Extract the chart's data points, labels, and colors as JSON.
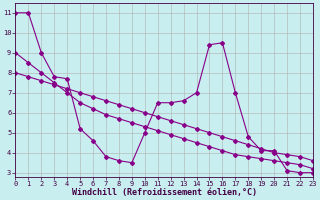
{
  "xlabel": "Windchill (Refroidissement éolien,°C)",
  "background_color": "#c8eef0",
  "grid_color": "#b0b0b0",
  "line_color": "#880088",
  "series": [
    {
      "x": [
        0,
        1,
        2,
        3,
        4,
        5,
        6,
        7,
        8,
        9,
        10,
        11,
        12,
        13,
        14,
        15,
        16,
        17,
        18,
        19,
        20,
        21,
        22,
        23
      ],
      "y": [
        11,
        11,
        9,
        7.8,
        7.7,
        5.2,
        4.6,
        3.8,
        3.6,
        3.5,
        5.0,
        6.5,
        6.5,
        6.6,
        7.0,
        9.4,
        9.5,
        7.0,
        4.8,
        4.1,
        4.1,
        3.1,
        3.0,
        3.0
      ]
    },
    {
      "x": [
        0,
        1,
        2,
        3,
        4,
        5,
        6,
        7,
        8,
        9,
        10,
        11,
        12,
        13,
        14,
        15,
        16,
        17,
        18,
        19,
        20,
        21,
        22,
        23
      ],
      "y": [
        9,
        8.5,
        8.0,
        7.5,
        7.0,
        6.5,
        6.2,
        5.9,
        5.7,
        5.5,
        5.3,
        5.1,
        4.9,
        4.7,
        4.5,
        4.3,
        4.1,
        3.9,
        3.8,
        3.7,
        3.6,
        3.5,
        3.4,
        3.2
      ]
    },
    {
      "x": [
        0,
        1,
        2,
        3,
        4,
        5,
        6,
        7,
        8,
        9,
        10,
        11,
        12,
        13,
        14,
        15,
        16,
        17,
        18,
        19,
        20,
        21,
        22,
        23
      ],
      "y": [
        8.0,
        7.8,
        7.6,
        7.4,
        7.2,
        7.0,
        6.8,
        6.6,
        6.4,
        6.2,
        6.0,
        5.8,
        5.6,
        5.4,
        5.2,
        5.0,
        4.8,
        4.6,
        4.4,
        4.2,
        4.0,
        3.9,
        3.8,
        3.6
      ]
    }
  ],
  "xlim": [
    0,
    23
  ],
  "ylim": [
    2.8,
    11.5
  ],
  "xticks": [
    0,
    1,
    2,
    3,
    4,
    5,
    6,
    7,
    8,
    9,
    10,
    11,
    12,
    13,
    14,
    15,
    16,
    17,
    18,
    19,
    20,
    21,
    22,
    23
  ],
  "yticks": [
    3,
    4,
    5,
    6,
    7,
    8,
    9,
    10,
    11
  ],
  "figsize": [
    3.2,
    2.0
  ],
  "dpi": 100,
  "tick_fontsize": 5,
  "xlabel_fontsize": 6
}
